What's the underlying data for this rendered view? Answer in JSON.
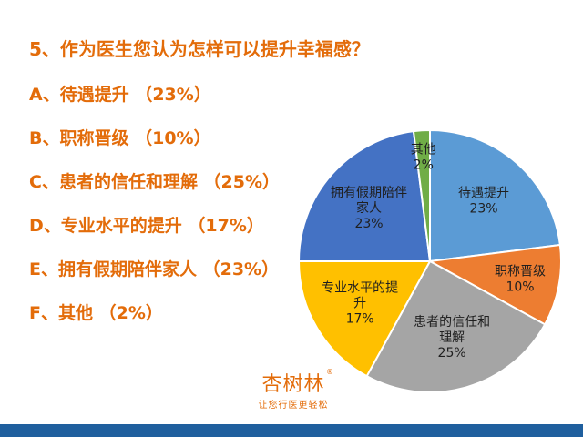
{
  "question": "5、作为医生您认为怎样可以提升幸福感？",
  "options": [
    "A、待遇提升 （23%）",
    "B、职称晋级 （10%）",
    "C、患者的信任和理解 （25%）",
    "D、专业水平的提升 （17%）",
    "E、拥有假期陪伴家人 （23%）",
    "F、其他 （2%）"
  ],
  "logo": {
    "name": "杏树林",
    "reg": "®",
    "slogan": "让您行医更轻松"
  },
  "chart_data": {
    "type": "pie",
    "slices": [
      {
        "label_lines": [
          "待遇提升",
          "23%"
        ],
        "value": 23,
        "color": "#5b9bd5"
      },
      {
        "label_lines": [
          "职称晋级",
          "10%"
        ],
        "value": 10,
        "color": "#ed7d31"
      },
      {
        "label_lines": [
          "患者的信任和",
          "理解",
          "25%"
        ],
        "value": 25,
        "color": "#a5a5a5"
      },
      {
        "label_lines": [
          "专业水平的提",
          "升",
          "17%"
        ],
        "value": 17,
        "color": "#ffc000"
      },
      {
        "label_lines": [
          "拥有假期陪伴",
          "家人",
          "23%"
        ],
        "value": 23,
        "color": "#4472c4"
      },
      {
        "label_lines": [
          "其他",
          "2%"
        ],
        "value": 2,
        "color": "#70ad47"
      }
    ],
    "start_angle_deg": -90,
    "direction": "clockwise"
  },
  "colors": {
    "accent": "#e36c0a",
    "bar": "#1f5f9e"
  }
}
